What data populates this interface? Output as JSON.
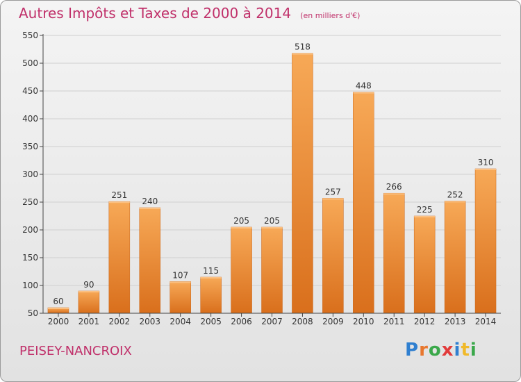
{
  "title": "Autres Impôts et Taxes de 2000 à 2014",
  "subtitle": "(en milliers d'€)",
  "commune": "PEISEY-NANCROIX",
  "logo": {
    "text": "Proxiti",
    "letters": [
      {
        "ch": "P",
        "color": "#2f7fd0"
      },
      {
        "ch": "r",
        "color": "#e8772e"
      },
      {
        "ch": "o",
        "color": "#3aa84a"
      },
      {
        "ch": "x",
        "color": "#e23b3b"
      },
      {
        "ch": "i",
        "color": "#2f7fd0"
      },
      {
        "ch": "t",
        "color": "#f0b92a"
      },
      {
        "ch": "i",
        "color": "#3aa84a"
      }
    ]
  },
  "colors": {
    "bar_light": "#f7a957",
    "bar_dark": "#d96f1c",
    "title": "#c0306a",
    "grid": "#cfcfcf",
    "axis": "#444444"
  },
  "chart_data": {
    "type": "bar",
    "title": "Autres Impôts et Taxes de 2000 à 2014",
    "subtitle": "(en milliers d'€)",
    "categories": [
      "2000",
      "2001",
      "2002",
      "2003",
      "2004",
      "2005",
      "2006",
      "2007",
      "2008",
      "2009",
      "2010",
      "2011",
      "2012",
      "2013",
      "2014"
    ],
    "values": [
      60,
      90,
      251,
      240,
      107,
      115,
      205,
      205,
      518,
      257,
      448,
      266,
      225,
      252,
      310
    ],
    "ylim": [
      50,
      550
    ],
    "yticks": [
      50,
      100,
      150,
      200,
      250,
      300,
      350,
      400,
      450,
      500,
      550
    ],
    "grid": true,
    "data_labels": true
  }
}
